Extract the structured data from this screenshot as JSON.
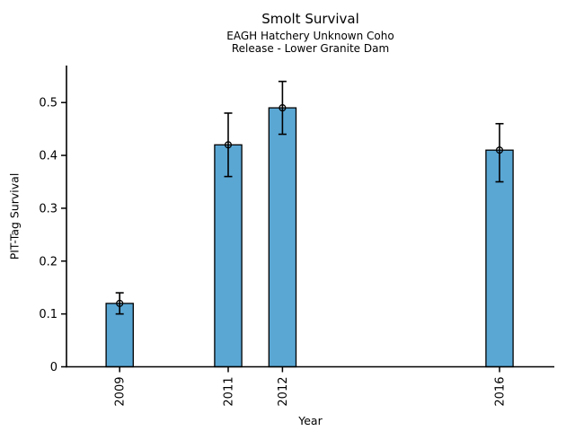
{
  "chart_data": {
    "type": "bar",
    "title": "Smolt Survival",
    "subtitle1": "EAGH Hatchery Unknown Coho",
    "subtitle2": "Release - Lower Granite Dam",
    "xlabel": "Year",
    "ylabel": "PIT-Tag Survival",
    "categories": [
      "2009",
      "2011",
      "2012",
      "2016"
    ],
    "x": [
      2009,
      2011,
      2012,
      2016
    ],
    "values": [
      0.12,
      0.42,
      0.49,
      0.41
    ],
    "error_low": [
      0.1,
      0.36,
      0.44,
      0.35
    ],
    "error_high": [
      0.14,
      0.48,
      0.54,
      0.46
    ],
    "bar_width_years": 0.5,
    "xlim": [
      2008.02,
      2017.01
    ],
    "ylim": [
      0,
      0.57
    ],
    "yticks": [
      0,
      0.1,
      0.2,
      0.3,
      0.4,
      0.5
    ],
    "ytick_labels": [
      "0",
      "0.1",
      "0.2",
      "0.3",
      "0.4",
      "0.5"
    ],
    "xtick_label_rotation": -90,
    "grid": false,
    "legend": "none",
    "marker": "open-circle",
    "colors": {
      "bar_fill": "#5AA7D4",
      "bar_edge": "#000000",
      "error_bar": "#000000",
      "axis": "#000000",
      "text": "#000000",
      "background": "#FFFFFF"
    }
  }
}
